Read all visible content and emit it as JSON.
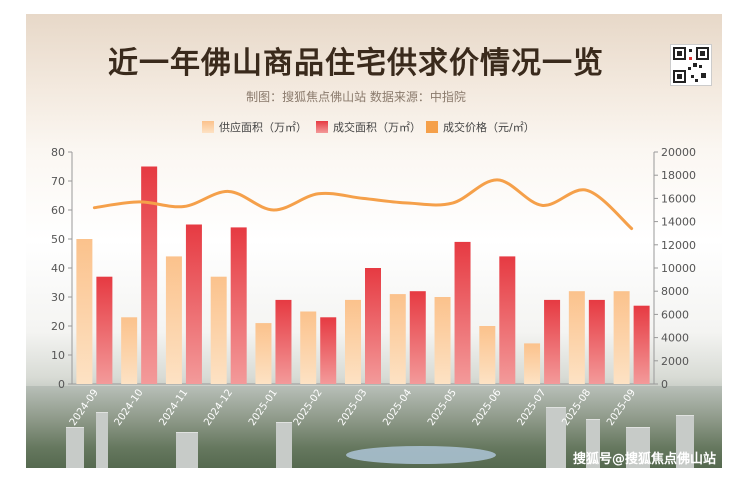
{
  "header": {
    "title": "近一年佛山商品住宅供求价情况一览",
    "subtitle": "制图：搜狐焦点佛山站  数据来源：中指院"
  },
  "footer": {
    "watermark": "搜狐号@搜狐焦点佛山站"
  },
  "colors": {
    "supply": "#f9c08f",
    "deal": "#e8434a",
    "price": "#f5a04a"
  },
  "chart_data": {
    "type": "bar",
    "categories": [
      "2024-09",
      "2024-10",
      "2024-11",
      "2024-12",
      "2025-01",
      "2025-02",
      "2025-03",
      "2025-04",
      "2025-05",
      "2025-06",
      "2025-07",
      "2025-08",
      "2025-09"
    ],
    "series": [
      {
        "name": "供应面积（万㎡）",
        "type": "bar",
        "axis": "left",
        "values": [
          50,
          23,
          44,
          37,
          21,
          25,
          29,
          31,
          30,
          20,
          14,
          32,
          32
        ]
      },
      {
        "name": "成交面积（万㎡）",
        "type": "bar",
        "axis": "left",
        "values": [
          37,
          75,
          55,
          54,
          29,
          23,
          40,
          32,
          49,
          44,
          29,
          29,
          27
        ]
      },
      {
        "name": "成交价格（元/㎡）",
        "type": "line",
        "axis": "right",
        "values": [
          15200,
          15700,
          15300,
          16600,
          15000,
          16400,
          16000,
          15600,
          15600,
          17600,
          15400,
          16700,
          13400
        ]
      }
    ],
    "left_axis": {
      "ticks": [
        "0",
        "10",
        "20",
        "30",
        "40",
        "50",
        "60",
        "70",
        "80"
      ],
      "ylim": [
        0,
        80
      ]
    },
    "right_axis": {
      "ticks": [
        "0",
        "2000",
        "4000",
        "6000",
        "8000",
        "10000",
        "12000",
        "14000",
        "16000",
        "18000",
        "20000"
      ],
      "ylim": [
        0,
        20000
      ]
    },
    "legend_position": "top",
    "grid": false
  }
}
